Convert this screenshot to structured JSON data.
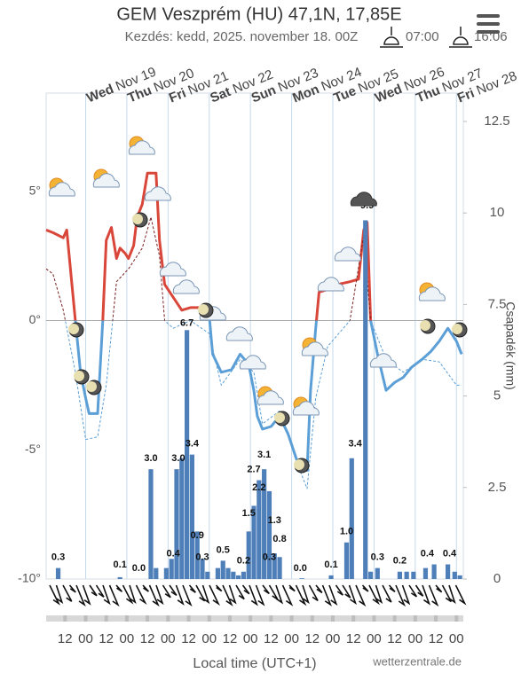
{
  "chart_data": {
    "type": "meteogram",
    "title": "GEM Veszprém (HU) 47,1N, 17,85E",
    "subtitle": "Kezdés: kedd, 2025. november 18. 00Z",
    "sunrise": "07:00",
    "sunset": "16:06",
    "y2_label": "Csapadék (mm)",
    "x_label": "Local time (UTC+1)",
    "source": "wetterzentrale.de",
    "xlim": [
      1,
      244
    ],
    "ylim": [
      -10,
      7.7
    ],
    "y2lim": [
      0,
      12.5
    ],
    "yticks": [
      {
        "value": 5,
        "label": "5°"
      },
      {
        "value": 0,
        "label": "0°"
      },
      {
        "value": -5,
        "label": "-5°"
      },
      {
        "value": -10,
        "label": "-10°"
      }
    ],
    "y2ticks": [
      0,
      2.5,
      5,
      7.5,
      10,
      12.5
    ],
    "xticks": [
      {
        "value": 12,
        "label": "12"
      },
      {
        "value": 24,
        "label": "00"
      },
      {
        "value": 36,
        "label": "12"
      },
      {
        "value": 48,
        "label": "00"
      },
      {
        "value": 60,
        "label": "12"
      },
      {
        "value": 72,
        "label": "00"
      },
      {
        "value": 84,
        "label": "12"
      },
      {
        "value": 96,
        "label": "00"
      },
      {
        "value": 108,
        "label": "12"
      },
      {
        "value": 120,
        "label": "00"
      },
      {
        "value": 132,
        "label": "12"
      },
      {
        "value": 144,
        "label": "00"
      },
      {
        "value": 156,
        "label": "12"
      },
      {
        "value": 168,
        "label": "00"
      },
      {
        "value": 180,
        "label": "12"
      },
      {
        "value": 192,
        "label": "00"
      },
      {
        "value": 204,
        "label": "12"
      },
      {
        "value": 216,
        "label": "00"
      },
      {
        "value": 228,
        "label": "12"
      },
      {
        "value": 240,
        "label": "00"
      }
    ],
    "days": [
      {
        "x": 24,
        "day": "Wed",
        "date": "Nov 19"
      },
      {
        "x": 48,
        "day": "Thu",
        "date": "Nov 20"
      },
      {
        "x": 72,
        "day": "Fri",
        "date": "Nov 21"
      },
      {
        "x": 96,
        "day": "Sat",
        "date": "Nov 22"
      },
      {
        "x": 120,
        "day": "Sun",
        "date": "Nov 23"
      },
      {
        "x": 144,
        "day": "Mon",
        "date": "Nov 24"
      },
      {
        "x": 168,
        "day": "Tue",
        "date": "Nov 25"
      },
      {
        "x": 192,
        "day": "Wed",
        "date": "Nov 26"
      },
      {
        "x": 216,
        "day": "Thu",
        "date": "Nov 27"
      },
      {
        "x": 240,
        "day": "Fri",
        "date": "Nov 28"
      }
    ],
    "series": [
      {
        "color": "#d9463a",
        "color_below": "#5b9fd6",
        "dashed": false,
        "x": [
          1,
          5,
          11,
          13,
          18,
          21,
          24,
          26,
          31,
          34,
          36,
          39,
          42,
          44,
          47,
          49,
          52,
          54,
          57,
          60,
          65,
          67,
          70,
          75,
          80,
          85,
          91,
          96,
          98,
          103,
          109,
          114,
          119,
          122,
          124,
          127,
          132,
          137,
          142,
          147,
          153,
          155,
          158,
          160,
          165,
          171,
          178,
          183,
          186,
          188,
          190,
          194,
          199,
          204,
          209,
          214,
          220,
          225,
          230,
          235,
          240,
          243
        ],
        "values": [
          3.5,
          3.4,
          3.2,
          3.5,
          0,
          -2,
          -3,
          -3.6,
          -3.6,
          0,
          3.1,
          3.6,
          2.4,
          2.8,
          2.6,
          2.4,
          2.9,
          4,
          4.5,
          5.7,
          5.7,
          3.1,
          1.4,
          0.9,
          0.4,
          0.5,
          0.5,
          0.2,
          -1.3,
          -2,
          -1.9,
          -1.3,
          -1.7,
          -2.7,
          -3.7,
          -4.2,
          -4.1,
          -3.7,
          -4.4,
          -5.4,
          -5.8,
          -2.7,
          -0.3,
          1.1,
          1.2,
          1.4,
          1.5,
          1.6,
          3.5,
          3.8,
          0,
          -1.3,
          -2.7,
          -2.4,
          -2.2,
          -1.8,
          -1.5,
          -1.2,
          -0.8,
          -0.3,
          -0.8,
          -1.3
        ]
      },
      {
        "color": "#7a1f1f",
        "color_below": "#5b9fd6",
        "dashed": true,
        "x": [
          1,
          5,
          11,
          18,
          24,
          31,
          36,
          42,
          49,
          57,
          62,
          67,
          70,
          75,
          85,
          96,
          103,
          114,
          122,
          127,
          137,
          147,
          153,
          158,
          165,
          178,
          186,
          190,
          199,
          209,
          220,
          230,
          240,
          243
        ],
        "values": [
          2,
          1.8,
          0.4,
          -2,
          -4.6,
          -4.5,
          -2.5,
          1.5,
          2,
          2.8,
          4,
          2.5,
          0,
          -0.3,
          0,
          -0.5,
          -2.5,
          -1.5,
          -2,
          -4,
          -3.5,
          -5.5,
          -6.5,
          -3,
          -1,
          0,
          3.3,
          0,
          -1.5,
          -2,
          -1.5,
          -1.6,
          -2.5,
          -2.5
        ]
      },
      {
        "color": "#4f7fb8",
        "axis": "y2",
        "x": [
          8,
          44,
          55,
          62,
          65,
          71,
          74,
          77,
          80,
          83,
          86,
          89,
          92,
          95,
          101,
          104,
          107,
          110,
          113,
          116,
          119,
          122,
          125,
          128,
          131,
          134,
          137,
          150,
          167,
          176,
          179,
          187,
          190,
          194,
          207,
          211,
          215,
          222,
          227,
          235,
          239,
          242
        ],
        "values": [
          0.3,
          0.05,
          0,
          3.0,
          0.3,
          0.3,
          0.55,
          3.0,
          3.3,
          6.8,
          3.4,
          1.3,
          0.55,
          0.2,
          0.3,
          0.5,
          0.3,
          0.2,
          0.1,
          0.2,
          1.3,
          2.0,
          2.7,
          3.0,
          2.4,
          0.7,
          0.6,
          0.02,
          0.1,
          1.0,
          3.3,
          9.8,
          0.2,
          0.3,
          0.2,
          0.2,
          0.2,
          0.3,
          0.4,
          0.4,
          0.2,
          0.1
        ]
      }
    ],
    "totals": {
      "x": [
        8,
        44,
        55,
        62,
        75,
        78,
        83,
        86,
        89,
        92,
        104,
        116,
        119,
        122,
        125,
        128,
        131,
        134,
        137,
        149,
        167,
        176,
        181,
        188,
        194,
        207,
        223,
        236
      ],
      "values": [
        0.3,
        0.1,
        0,
        3,
        0.4,
        3,
        6.7,
        3.4,
        0.9,
        0.3,
        0.5,
        0.2,
        1.5,
        2.7,
        2.2,
        3.1,
        0.3,
        1.3,
        0.8,
        0,
        0.1,
        1,
        3.4,
        9.9,
        0.3,
        0.2,
        0.4,
        0.4
      ],
      "value_labels": [
        "0.3",
        "0.1",
        "0.0",
        "3.0",
        "0.4",
        "3.0",
        "6.7",
        "3.4",
        "0.9",
        "0.3",
        "0.5",
        "0.2",
        "1.5",
        "2.7",
        "2.2",
        "3.1",
        "0.3",
        "1.3",
        "0.8",
        "0.0",
        "0.1",
        "1.0",
        "3.4",
        "9.9",
        "0.3",
        "0.2",
        "0.4",
        "0.4"
      ]
    }
  }
}
